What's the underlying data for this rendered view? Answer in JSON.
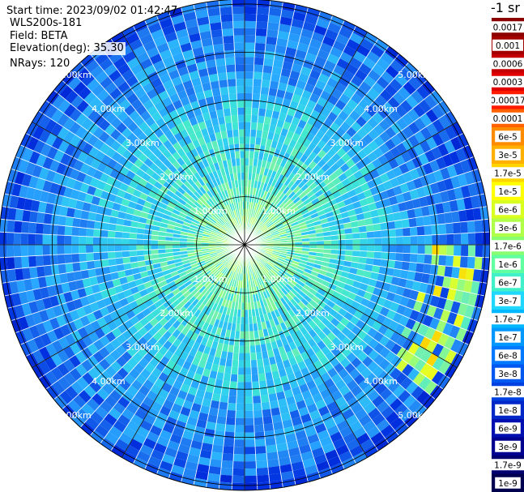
{
  "info": {
    "start_time": "Start time: 2023/09/02 01:42:47",
    "instrument": "WLS200s-181",
    "field": "Field: BETA",
    "elevation": "Elevation(deg): 35.30",
    "nrays": "NRays: 120"
  },
  "colorbar": {
    "title": "-1 sr",
    "labels": [
      "0.0017",
      "0.001",
      "0.0006",
      "0.0003",
      "0.00017",
      "0.0001",
      "6e-5",
      "3e-5",
      "1.7e-5",
      "1e-5",
      "6e-6",
      "3e-6",
      "1.7e-6",
      "1e-6",
      "6e-7",
      "3e-7",
      "1.7e-7",
      "1e-7",
      "6e-8",
      "3e-8",
      "1.7e-8",
      "1e-8",
      "6e-9",
      "3e-9",
      "1.7e-9",
      "1e-9"
    ],
    "colors": [
      "#8b0000",
      "#a30000",
      "#c40000",
      "#e00000",
      "#ff1a00",
      "#ff6000",
      "#ff8c00",
      "#ffb000",
      "#ffd400",
      "#ffff00",
      "#d8ff20",
      "#b0ff48",
      "#88ff70",
      "#60ffa0",
      "#40f0c8",
      "#20d8ff",
      "#00b8ff",
      "#0098ff",
      "#0078ff",
      "#0058f0",
      "#0040e0",
      "#0028c8",
      "#0010b0",
      "#000090",
      "#000070",
      "#000050"
    ]
  },
  "chart_data": {
    "type": "polar_ppi",
    "field": "BETA",
    "nrays": 120,
    "elevation_deg": 35.3,
    "range_ring_labels_km": [
      "1.00km",
      "2.00km",
      "3.00km",
      "4.00km",
      "5.00km"
    ],
    "range_rings_km": [
      1,
      2,
      3,
      4,
      5
    ],
    "azimuth_lines_deg": [
      0,
      30,
      60,
      90,
      120,
      150,
      180,
      210,
      240,
      270,
      300,
      330
    ],
    "max_range_km": 5.1,
    "typical_beta_by_range": [
      {
        "range_km": 0.5,
        "beta": 1e-06
      },
      {
        "range_km": 1.5,
        "beta": 3e-07
      },
      {
        "range_km": 2.5,
        "beta": 1.7e-07
      },
      {
        "range_km": 3.5,
        "beta": 6e-08
      },
      {
        "range_km": 4.5,
        "beta": 3e-08
      },
      {
        "range_km": 5.0,
        "beta": 1.7e-08
      }
    ],
    "enhanced_region": {
      "azimuth_deg_range": [
        90,
        130
      ],
      "range_km": [
        3.8,
        5.0
      ],
      "beta_max": 1e-05
    }
  }
}
